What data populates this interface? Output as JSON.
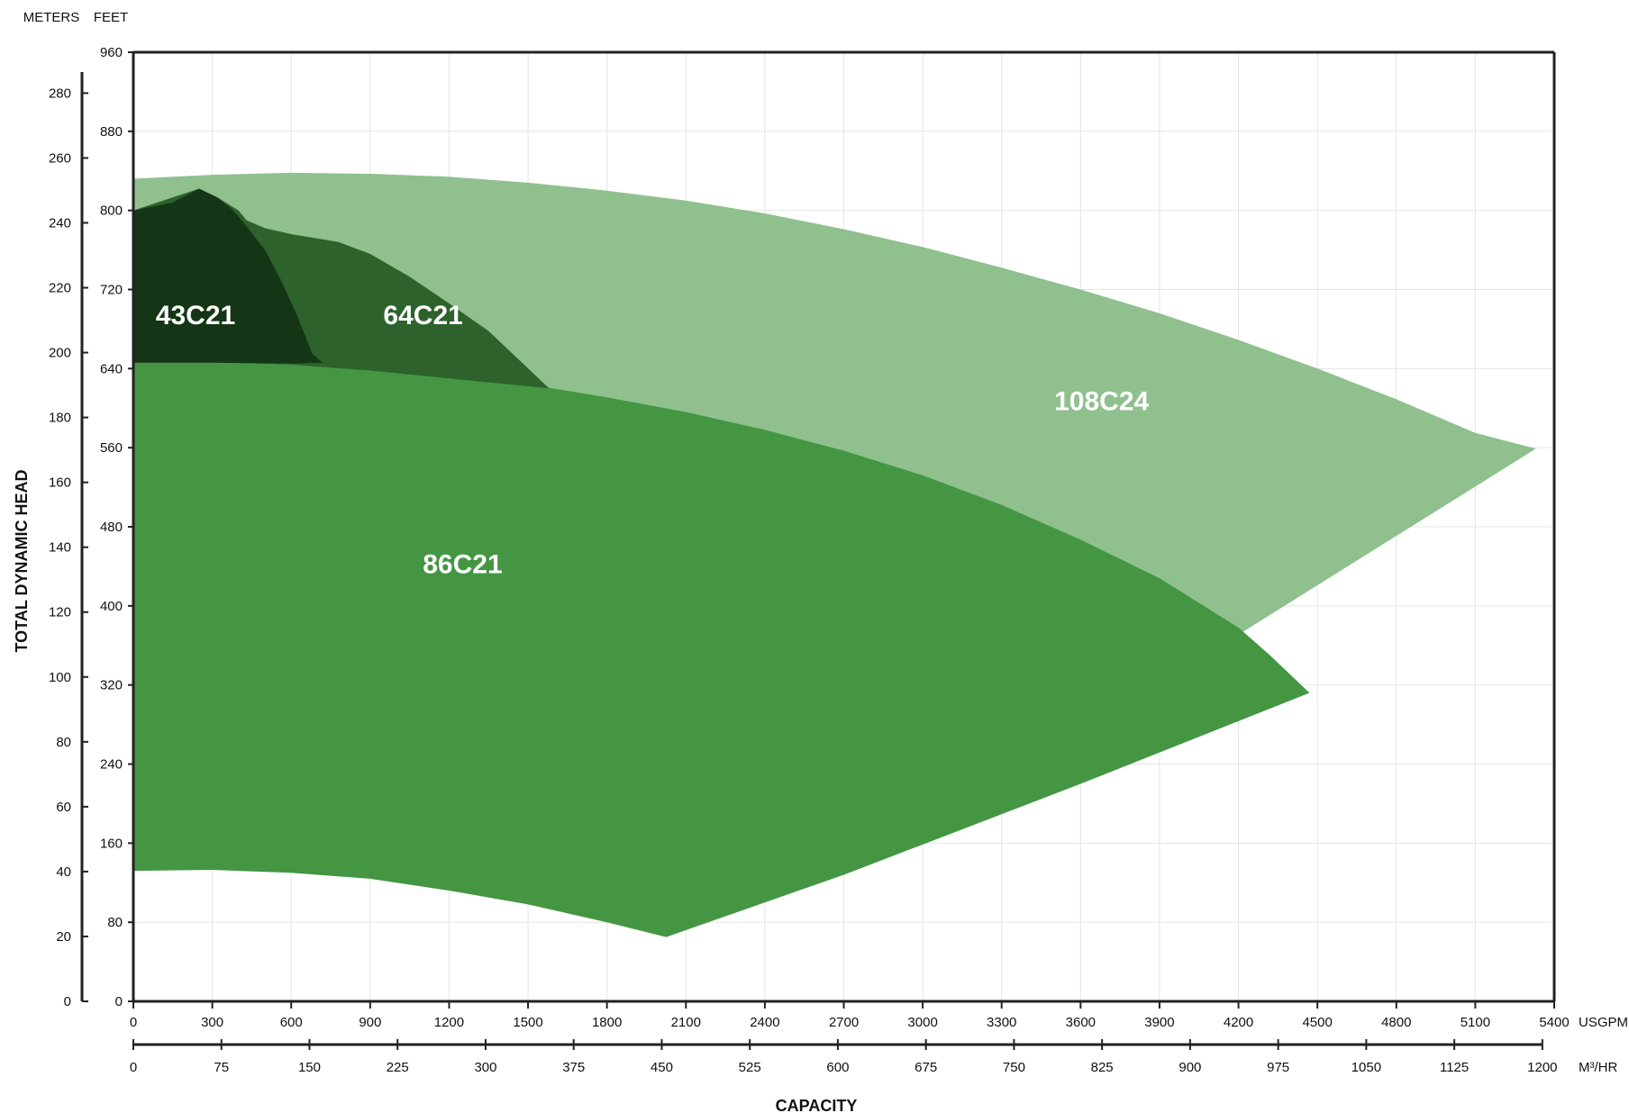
{
  "chart_data": {
    "type": "area",
    "title": "",
    "colors": {
      "108C24": "#8fc08e",
      "86C21": "#449643",
      "64C21": "#2d622c",
      "43C21": "#143616",
      "grid": "#e4e4e4",
      "axis": "#222222"
    },
    "grid": true,
    "x_primary": {
      "unit_label": "USGPM",
      "range": [
        0,
        5400
      ],
      "ticks": [
        "0",
        "300",
        "600",
        "900",
        "1200",
        "1500",
        "1800",
        "2100",
        "2400",
        "2700",
        "3000",
        "3300",
        "3600",
        "3900",
        "4200",
        "4500",
        "4800",
        "5100",
        "5400"
      ]
    },
    "x_secondary": {
      "unit_label": "M³/HR",
      "range": [
        0,
        1200
      ],
      "ticks": [
        "0",
        "75",
        "150",
        "225",
        "300",
        "375",
        "450",
        "525",
        "600",
        "675",
        "750",
        "825",
        "900",
        "975",
        "1050",
        "1125",
        "1200"
      ]
    },
    "y_primary": {
      "unit_label": "FEET",
      "range": [
        0,
        960
      ],
      "ticks": [
        "0",
        "80",
        "160",
        "240",
        "320",
        "400",
        "480",
        "560",
        "640",
        "720",
        "800",
        "880",
        "960"
      ]
    },
    "y_secondary": {
      "unit_label": "METERS",
      "range": [
        0,
        292.6
      ],
      "ticks": [
        "0",
        "20",
        "40",
        "60",
        "80",
        "100",
        "120",
        "140",
        "160",
        "180",
        "200",
        "220",
        "240",
        "260",
        "280"
      ]
    },
    "xlabel": "CAPACITY",
    "ylabel": "TOTAL DYNAMIC HEAD",
    "series": [
      {
        "name": "108C24",
        "label_at": [
          3500,
          598
        ],
        "boundary": [
          [
            0,
            832
          ],
          [
            300,
            836
          ],
          [
            600,
            838
          ],
          [
            900,
            837
          ],
          [
            1200,
            834
          ],
          [
            1500,
            828
          ],
          [
            1800,
            820
          ],
          [
            2100,
            810
          ],
          [
            2400,
            797
          ],
          [
            2700,
            781
          ],
          [
            3000,
            763
          ],
          [
            3300,
            742
          ],
          [
            3600,
            720
          ],
          [
            3900,
            696
          ],
          [
            4200,
            669
          ],
          [
            4500,
            640
          ],
          [
            4800,
            609
          ],
          [
            5100,
            575
          ],
          [
            5330,
            559
          ],
          [
            4200,
            371
          ],
          [
            3900,
            410
          ],
          [
            3600,
            447
          ],
          [
            3300,
            480
          ],
          [
            3000,
            512
          ],
          [
            2700,
            540
          ],
          [
            2400,
            563
          ],
          [
            2100,
            582
          ],
          [
            1800,
            597
          ],
          [
            1500,
            608
          ],
          [
            1200,
            619
          ],
          [
            900,
            628
          ],
          [
            600,
            634
          ],
          [
            300,
            639
          ],
          [
            0,
            640
          ]
        ]
      },
      {
        "name": "86C21",
        "label_at": [
          1100,
          433
        ],
        "boundary": [
          [
            0,
            646
          ],
          [
            300,
            646
          ],
          [
            600,
            644
          ],
          [
            900,
            640
          ],
          [
            1200,
            633
          ],
          [
            1500,
            624
          ],
          [
            1800,
            611
          ],
          [
            2100,
            596
          ],
          [
            2400,
            578
          ],
          [
            2700,
            557
          ],
          [
            3000,
            532
          ],
          [
            3300,
            502
          ],
          [
            3600,
            467
          ],
          [
            3900,
            428
          ],
          [
            4200,
            378
          ],
          [
            4320,
            350
          ],
          [
            4470,
            312
          ],
          [
            3600,
            220
          ],
          [
            2700,
            128
          ],
          [
            2025,
            65
          ],
          [
            1800,
            80
          ],
          [
            1500,
            98
          ],
          [
            1200,
            112
          ],
          [
            900,
            124
          ],
          [
            600,
            130
          ],
          [
            300,
            133
          ],
          [
            0,
            132
          ]
        ]
      },
      {
        "name": "64C21",
        "label_at": [
          950,
          685
        ],
        "boundary": [
          [
            0,
            800
          ],
          [
            250,
            822
          ],
          [
            320,
            813
          ],
          [
            400,
            800
          ],
          [
            430,
            790
          ],
          [
            500,
            782
          ],
          [
            600,
            776
          ],
          [
            780,
            768
          ],
          [
            900,
            756
          ],
          [
            1050,
            733
          ],
          [
            1200,
            706
          ],
          [
            1350,
            678
          ],
          [
            1580,
            620
          ],
          [
            1200,
            630
          ],
          [
            900,
            638
          ],
          [
            600,
            644
          ],
          [
            300,
            646
          ],
          [
            0,
            646
          ]
        ]
      },
      {
        "name": "43C21",
        "label_at": [
          85,
          685
        ],
        "boundary": [
          [
            0,
            800
          ],
          [
            150,
            808
          ],
          [
            250,
            822
          ],
          [
            320,
            813
          ],
          [
            380,
            800
          ],
          [
            430,
            784
          ],
          [
            500,
            760
          ],
          [
            560,
            730
          ],
          [
            620,
            695
          ],
          [
            680,
            655
          ],
          [
            720,
            646
          ],
          [
            600,
            645
          ],
          [
            300,
            646
          ],
          [
            0,
            646
          ]
        ]
      }
    ]
  }
}
